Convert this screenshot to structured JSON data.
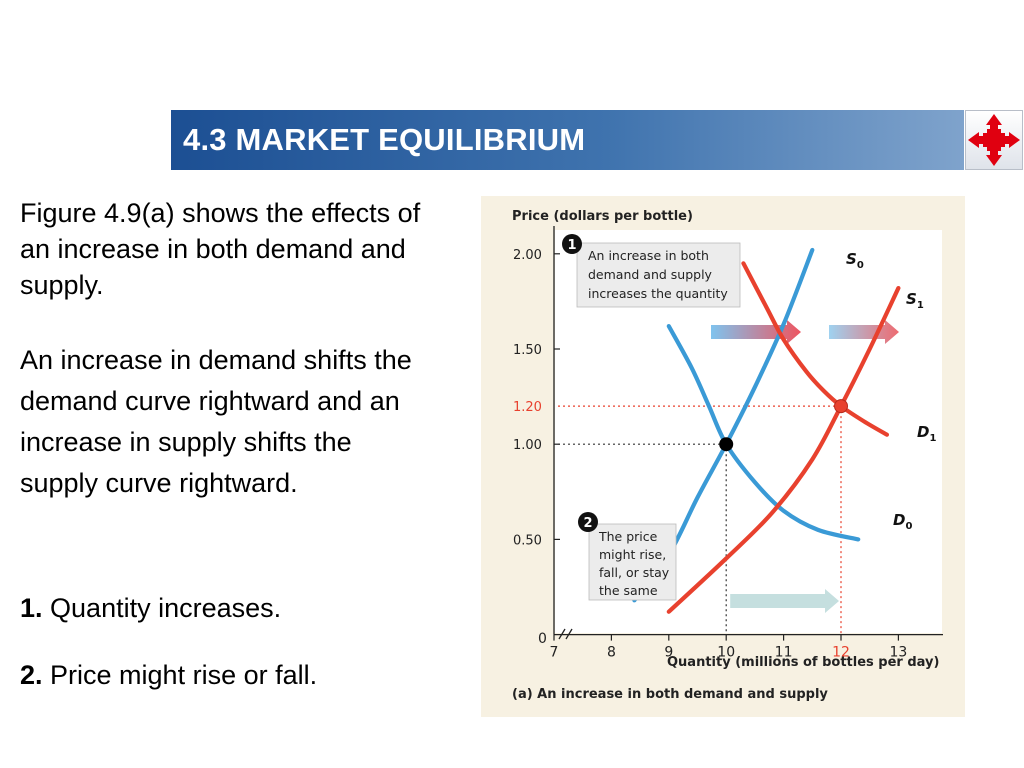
{
  "slide": {
    "title": "4.3 MARKET EQUILIBRIUM",
    "nav_icon": "four-way-arrow-icon",
    "paragraphs": {
      "p1": "Figure 4.9(a) shows the effects of an increase in both demand and supply.",
      "p2": "An increase in demand shifts the demand curve rightward and an increase in supply shifts the supply curve rightward.",
      "p3_num": "1.",
      "p3_text": " Quantity increases.",
      "p4_num": "2.",
      "p4_text": " Price might rise or fall."
    }
  },
  "chart_data": {
    "type": "line",
    "ylabel": "Price (dollars per bottle)",
    "xlabel": "Quantity (millions of bottles per day)",
    "caption": "(a)  An increase in both demand and supply",
    "xlim": [
      6.5,
      13.2
    ],
    "ylim": [
      0,
      2.1
    ],
    "x_ticks": [
      "7",
      "8",
      "9",
      "10",
      "11",
      "12",
      "13"
    ],
    "y_ticks": [
      {
        "value": 0.5,
        "label": "0.50"
      },
      {
        "value": 1.0,
        "label": "1.00"
      },
      {
        "value": 1.5,
        "label": "1.50"
      },
      {
        "value": 2.0,
        "label": "2.00"
      }
    ],
    "origin_label": "0",
    "highlight_y_tick": {
      "value": 1.2,
      "label": "1.20"
    },
    "highlight_x_tick": "12",
    "series": [
      {
        "name": "S",
        "sub": "0",
        "color": "#3a9ad6",
        "x": [
          8.4,
          9.0,
          9.5,
          10.0,
          10.5,
          11.0,
          11.5
        ],
        "y": [
          0.18,
          0.42,
          0.72,
          1.0,
          1.3,
          1.63,
          2.02
        ]
      },
      {
        "name": "D",
        "sub": "0",
        "color": "#3a9ad6",
        "x": [
          9.0,
          9.4,
          9.7,
          10.0,
          10.5,
          11.0,
          11.6,
          12.3
        ],
        "y": [
          1.62,
          1.4,
          1.2,
          1.0,
          0.8,
          0.65,
          0.55,
          0.5
        ]
      },
      {
        "name": "S",
        "sub": "1",
        "color": "#e8412e",
        "x": [
          9.0,
          10.0,
          10.8,
          11.5,
          12.0,
          12.5,
          13.0
        ],
        "y": [
          0.12,
          0.4,
          0.64,
          0.92,
          1.2,
          1.5,
          1.82
        ]
      },
      {
        "name": "D",
        "sub": "1",
        "color": "#e8412e",
        "x": [
          10.3,
          10.7,
          11.0,
          11.4,
          11.7,
          12.0,
          12.4,
          12.8
        ],
        "y": [
          1.95,
          1.72,
          1.55,
          1.38,
          1.28,
          1.2,
          1.12,
          1.05
        ]
      }
    ],
    "equilibria": [
      {
        "x": 10,
        "y": 1.0,
        "color": "#000000"
      },
      {
        "x": 12,
        "y": 1.2,
        "color": "#e8412e"
      }
    ],
    "annotations": [
      {
        "number": "1",
        "lines": [
          "An increase in both",
          "demand and supply",
          "increases the quantity"
        ]
      },
      {
        "number": "2",
        "lines": [
          "The price",
          "might rise,",
          "fall, or stay",
          "the same"
        ]
      }
    ]
  }
}
